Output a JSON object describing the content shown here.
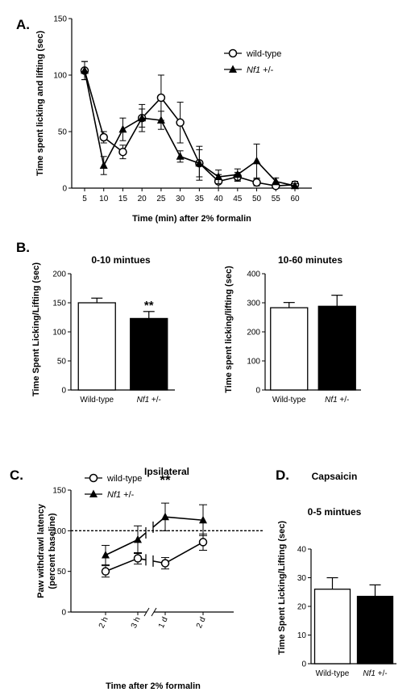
{
  "panels": {
    "a": "A.",
    "b": "B.",
    "c": "C.",
    "d": "D."
  },
  "chart_data": [
    {
      "id": "A",
      "type": "line",
      "title": "",
      "xlabel": "Time (min) after 2% formalin",
      "ylabel": "Time spent licking and lifting (sec)",
      "x": [
        5,
        10,
        15,
        20,
        25,
        30,
        35,
        40,
        45,
        50,
        55,
        60
      ],
      "xticks": [
        "5",
        "10",
        "15",
        "20",
        "25",
        "30",
        "35",
        "40",
        "45",
        "50",
        "55",
        "60"
      ],
      "ylim": [
        0,
        150
      ],
      "yticks": [
        "0",
        "50",
        "100",
        "150"
      ],
      "legend_position": "top-right",
      "series": [
        {
          "name": "wild-type",
          "marker": "open-circle",
          "values": [
            104,
            45,
            32,
            62,
            80,
            58,
            22,
            6,
            10,
            5,
            2,
            3
          ],
          "errors": [
            8,
            5,
            6,
            12,
            20,
            18,
            12,
            6,
            4,
            3,
            2,
            3
          ]
        },
        {
          "name": "Nf1 +/-",
          "marker": "filled-triangle",
          "values": [
            104,
            20,
            52,
            62,
            60,
            28,
            22,
            10,
            12,
            24,
            6,
            2
          ],
          "errors": [
            8,
            8,
            10,
            8,
            8,
            5,
            15,
            6,
            5,
            15,
            3,
            2
          ]
        }
      ]
    },
    {
      "id": "B1",
      "type": "bar",
      "title": "0-10 mintues",
      "xlabel": "",
      "ylabel": "Time Spent Licking/Lifting (sec)",
      "categories": [
        "Wild-type",
        "Nf1 +/-"
      ],
      "values": [
        150,
        123
      ],
      "errors": [
        8,
        12
      ],
      "fills": [
        "white",
        "black"
      ],
      "ylim": [
        0,
        200
      ],
      "yticks": [
        "0",
        "50",
        "100",
        "150",
        "200"
      ],
      "annotations": [
        "",
        "**"
      ]
    },
    {
      "id": "B2",
      "type": "bar",
      "title": "10-60 minutes",
      "xlabel": "",
      "ylabel": "Time spent licking/lifting (sec)",
      "categories": [
        "Wild-type",
        "Nf1 +/-"
      ],
      "values": [
        283,
        288
      ],
      "errors": [
        18,
        38
      ],
      "fills": [
        "white",
        "black"
      ],
      "ylim": [
        0,
        400
      ],
      "yticks": [
        "0",
        "100",
        "200",
        "300",
        "400"
      ]
    },
    {
      "id": "C",
      "type": "line",
      "title": "Ipsilateral",
      "xlabel": "Time after 2% formalin",
      "ylabel": "Paw withdrawl latency (percent baseline)",
      "xticks": [
        "2 h",
        "3 h",
        "1 d",
        "2 d"
      ],
      "ylim": [
        0,
        150
      ],
      "yticks": [
        "0",
        "50",
        "100",
        "150"
      ],
      "reference_line": 100,
      "axis_break_between": [
        "3 h",
        "1 d"
      ],
      "annotation": "**",
      "legend_position": "top-left",
      "series": [
        {
          "name": "wild-type",
          "marker": "open-circle",
          "values": [
            50,
            66,
            60,
            86
          ],
          "errors": [
            7,
            7,
            7,
            10
          ]
        },
        {
          "name": "Nf1 +/-",
          "marker": "filled-triangle",
          "values": [
            70,
            89,
            117,
            113
          ],
          "errors": [
            12,
            17,
            17,
            19
          ]
        }
      ]
    },
    {
      "id": "D",
      "type": "bar",
      "title": "Capsaicin",
      "subtitle": "0-5 mintues",
      "xlabel": "",
      "ylabel": "Time Spent Licking/Lifting (sec)",
      "categories": [
        "Wild-type",
        "Nf1 +/-"
      ],
      "values": [
        26,
        23.5
      ],
      "errors": [
        4,
        4
      ],
      "fills": [
        "white",
        "black"
      ],
      "ylim": [
        0,
        40
      ],
      "yticks": [
        "0",
        "10",
        "20",
        "30",
        "40"
      ]
    }
  ]
}
